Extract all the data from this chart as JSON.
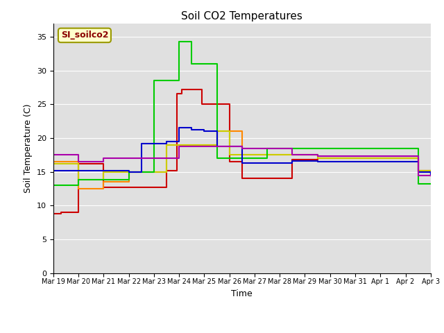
{
  "title": "Soil CO2 Temperatures",
  "xlabel": "Time",
  "ylabel": "Soil Temperature (C)",
  "ylim": [
    0,
    37
  ],
  "yticks": [
    0,
    5,
    10,
    15,
    20,
    25,
    30,
    35
  ],
  "annotation_text": "SI_soilco2",
  "series": {
    "SoilT_1": {
      "color": "#cc0000",
      "times": [
        0,
        0.3,
        1.0,
        2.0,
        3.0,
        3.5,
        3.9,
        4.5,
        4.9,
        5.1,
        5.5,
        5.9,
        6.5,
        7.0,
        7.5,
        8.5,
        9.5,
        10.5,
        11.0,
        12.0,
        13.0,
        14.0,
        14.5,
        15.0
      ],
      "values": [
        8.8,
        9.0,
        16.2,
        12.7,
        12.7,
        12.7,
        12.7,
        15.2,
        26.6,
        27.2,
        27.2,
        25.0,
        25.0,
        16.5,
        14.0,
        14.0,
        16.8,
        17.0,
        17.0,
        17.0,
        17.0,
        17.0,
        15.2,
        14.5
      ]
    },
    "SoilT_2": {
      "color": "#ff8800",
      "times": [
        0,
        0.5,
        1.0,
        2.0,
        3.0,
        3.5,
        4.0,
        4.5,
        5.0,
        5.5,
        6.0,
        6.5,
        7.0,
        7.5,
        8.5,
        9.5,
        10.5,
        11.0,
        12.0,
        13.0,
        14.0,
        14.5,
        15.0
      ],
      "values": [
        16.5,
        16.5,
        12.5,
        13.5,
        15.0,
        15.0,
        15.0,
        19.0,
        19.0,
        19.0,
        19.0,
        21.0,
        21.0,
        17.5,
        17.5,
        17.5,
        17.0,
        17.0,
        17.0,
        17.0,
        17.0,
        15.2,
        14.5
      ]
    },
    "SoilT_3": {
      "color": "#cccc00",
      "times": [
        0,
        0.5,
        1.0,
        2.0,
        3.0,
        3.5,
        4.0,
        4.5,
        5.0,
        5.5,
        6.0,
        6.5,
        7.0,
        7.5,
        8.5,
        9.5,
        10.5,
        11.0,
        12.0,
        13.0,
        14.0,
        14.5,
        15.0
      ],
      "values": [
        16.2,
        16.2,
        13.8,
        15.0,
        15.0,
        15.0,
        15.0,
        19.0,
        19.0,
        19.0,
        19.0,
        21.0,
        17.5,
        17.5,
        17.5,
        17.5,
        17.0,
        17.0,
        17.0,
        17.0,
        17.0,
        15.2,
        14.5
      ]
    },
    "SoilT_4": {
      "color": "#00cc00",
      "times": [
        0,
        0.5,
        1.0,
        2.0,
        3.0,
        3.5,
        4.0,
        4.5,
        5.0,
        5.2,
        5.5,
        6.0,
        6.5,
        7.0,
        7.5,
        8.5,
        9.5,
        10.5,
        11.0,
        12.0,
        13.0,
        14.0,
        14.5,
        15.0
      ],
      "values": [
        13.0,
        13.0,
        13.8,
        13.8,
        15.0,
        15.0,
        28.5,
        28.5,
        34.3,
        34.3,
        31.0,
        31.0,
        17.0,
        17.0,
        17.0,
        18.5,
        18.5,
        18.5,
        18.5,
        18.5,
        18.5,
        18.5,
        13.2,
        13.2
      ]
    },
    "SoilT_5": {
      "color": "#0000cc",
      "times": [
        0,
        0.5,
        1.0,
        2.0,
        3.0,
        3.5,
        4.0,
        4.5,
        5.0,
        5.5,
        6.0,
        6.5,
        7.0,
        7.5,
        8.5,
        9.5,
        10.5,
        11.0,
        12.0,
        13.0,
        14.0,
        14.5,
        15.0
      ],
      "values": [
        15.2,
        15.2,
        15.2,
        15.2,
        15.0,
        19.2,
        19.2,
        19.5,
        21.5,
        21.2,
        21.0,
        18.8,
        18.8,
        16.3,
        16.3,
        16.6,
        16.5,
        16.5,
        16.5,
        16.5,
        16.5,
        15.0,
        14.5
      ]
    },
    "SoilT_6": {
      "color": "#aa00aa",
      "times": [
        0,
        0.5,
        1.0,
        2.0,
        3.0,
        3.5,
        4.0,
        4.5,
        5.0,
        5.5,
        6.0,
        6.5,
        7.0,
        7.5,
        8.5,
        9.5,
        10.5,
        11.0,
        12.0,
        13.0,
        14.0,
        14.5,
        15.0
      ],
      "values": [
        17.5,
        17.5,
        16.5,
        17.0,
        17.0,
        17.0,
        17.0,
        17.0,
        18.8,
        18.8,
        18.8,
        18.8,
        18.8,
        18.5,
        18.5,
        17.5,
        17.3,
        17.3,
        17.3,
        17.3,
        17.3,
        14.5,
        14.5
      ]
    }
  },
  "x_tick_labels": [
    "Mar 19",
    "Mar 20",
    "Mar 21",
    "Mar 22",
    "Mar 23",
    "Mar 24",
    "Mar 25",
    "Mar 26",
    "Mar 27",
    "Mar 28",
    "Mar 29",
    "Mar 30",
    "Mar 31",
    "Apr 1",
    "Apr 2",
    "Apr 3"
  ],
  "x_tick_positions": [
    0,
    1,
    2,
    3,
    4,
    5,
    6,
    7,
    8,
    9,
    10,
    11,
    12,
    13,
    14,
    15
  ]
}
